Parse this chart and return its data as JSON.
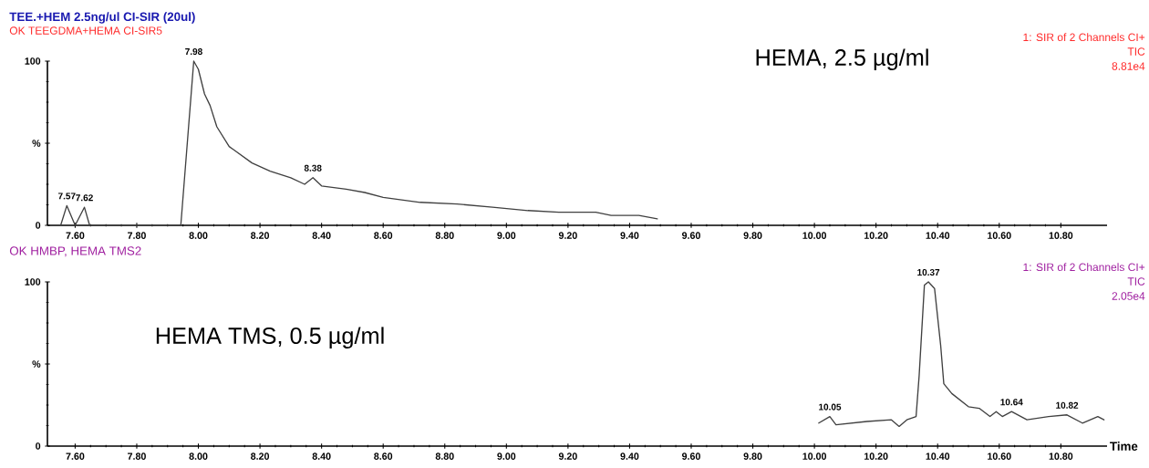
{
  "chart_data": [
    {
      "type": "line",
      "title": "TEE.+HEM 2.5ng/ul CI-SIR (20ul)",
      "subtitle": "OK TEEGDMA+HEMA CI-SIR5",
      "annotations": [
        "HEMA, 2.5 µg/ml",
        "1: SIR of 2 Channels CI+",
        "TIC",
        "8.81e4",
        {
          "text": "7.98",
          "x": 7.985,
          "y": 100
        },
        {
          "text": "8.38",
          "x": 8.372,
          "y": 29
        },
        {
          "text": "7.57",
          "x": 7.573,
          "y": 12
        },
        {
          "text": "7.62",
          "x": 7.63,
          "y": 11
        }
      ],
      "x": [
        7.553,
        7.573,
        7.6,
        7.63,
        7.647,
        7.943,
        7.985,
        8.0,
        8.02,
        8.038,
        8.06,
        8.1,
        8.174,
        8.233,
        8.3,
        8.345,
        8.372,
        8.4,
        8.48,
        8.54,
        8.6,
        8.72,
        8.84,
        8.955,
        9.07,
        9.17,
        9.22,
        9.29,
        9.34,
        9.43,
        9.49
      ],
      "values": [
        0,
        12,
        0,
        11,
        0,
        0,
        100,
        95,
        80,
        73,
        60,
        48,
        38,
        33,
        29,
        25,
        29,
        24,
        22,
        20,
        17,
        14,
        13,
        11,
        9,
        8,
        8,
        8,
        6,
        6,
        4
      ],
      "color": "#404040",
      "xlim": [
        7.51,
        10.95
      ],
      "ylim": [
        0,
        100
      ],
      "xticks": [
        {
          "value": 7.6,
          "label": "7.60"
        },
        {
          "value": 7.8,
          "label": "7.80"
        },
        {
          "value": 8.0,
          "label": "8.00"
        },
        {
          "value": 8.2,
          "label": "8.20"
        },
        {
          "value": 8.4,
          "label": "8.40"
        },
        {
          "value": 8.6,
          "label": "8.60"
        },
        {
          "value": 8.8,
          "label": "8.80"
        },
        {
          "value": 9.0,
          "label": "9.00"
        },
        {
          "value": 9.2,
          "label": "9.20"
        },
        {
          "value": 9.4,
          "label": "9.40"
        },
        {
          "value": 9.6,
          "label": "9.60"
        },
        {
          "value": 9.8,
          "label": "9.80"
        },
        {
          "value": 10.0,
          "label": "10.00"
        },
        {
          "value": 10.2,
          "label": "10.20"
        },
        {
          "value": 10.4,
          "label": "10.40"
        },
        {
          "value": 10.6,
          "label": "10.60"
        },
        {
          "value": 10.8,
          "label": "10.80"
        }
      ],
      "yticks": [
        0,
        {
          "value": 50,
          "label": "%"
        },
        100
      ]
    },
    {
      "type": "line",
      "title": "OK HMBP, HEMA TMS2",
      "xlabel": "Time",
      "annotations": [
        "HEMA TMS, 0.5 µg/ml",
        "1: SIR of 2 Channels CI+",
        "TIC",
        "2.05e4",
        {
          "text": "10.05",
          "x": 10.05,
          "y": 18
        },
        {
          "text": "10.37",
          "x": 10.37,
          "y": 100
        },
        {
          "text": "10.64",
          "x": 10.64,
          "y": 21
        },
        {
          "text": "10.82",
          "x": 10.82,
          "y": 19
        }
      ],
      "x": [
        10.014,
        10.05,
        10.07,
        10.17,
        10.25,
        10.275,
        10.3,
        10.33,
        10.34,
        10.357,
        10.37,
        10.39,
        10.41,
        10.42,
        10.446,
        10.5,
        10.535,
        10.57,
        10.59,
        10.61,
        10.64,
        10.69,
        10.76,
        10.82,
        10.87,
        10.92,
        10.94
      ],
      "values": [
        14,
        18,
        13,
        15,
        16,
        12,
        16,
        18,
        43,
        98,
        100,
        96,
        61,
        38,
        32,
        24,
        23,
        18,
        21,
        18,
        21,
        16,
        18,
        19,
        14,
        18,
        16
      ],
      "color": "#404040",
      "xlim": [
        7.51,
        10.95
      ],
      "ylim": [
        0,
        100
      ],
      "xticks": [
        {
          "value": 7.6,
          "label": "7.60"
        },
        {
          "value": 7.8,
          "label": "7.80"
        },
        {
          "value": 8.0,
          "label": "8.00"
        },
        {
          "value": 8.2,
          "label": "8.20"
        },
        {
          "value": 8.4,
          "label": "8.40"
        },
        {
          "value": 8.6,
          "label": "8.60"
        },
        {
          "value": 8.8,
          "label": "8.80"
        },
        {
          "value": 9.0,
          "label": "9.00"
        },
        {
          "value": 9.2,
          "label": "9.20"
        },
        {
          "value": 9.4,
          "label": "9.40"
        },
        {
          "value": 9.6,
          "label": "9.60"
        },
        {
          "value": 9.8,
          "label": "9.80"
        },
        {
          "value": 10.0,
          "label": "10.00"
        },
        {
          "value": 10.2,
          "label": "10.20"
        },
        {
          "value": 10.4,
          "label": "10.40"
        },
        {
          "value": 10.6,
          "label": "10.60"
        },
        {
          "value": 10.8,
          "label": "10.80"
        }
      ],
      "yticks": [
        0,
        {
          "value": 50,
          "label": "%"
        },
        100
      ]
    }
  ]
}
